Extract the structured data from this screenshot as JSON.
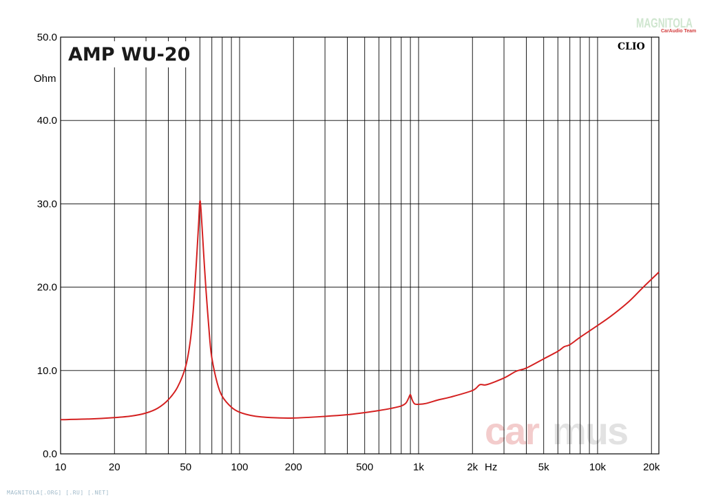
{
  "chart_data": {
    "type": "line",
    "title": "AMP WU-20",
    "ylabel": "Ohm",
    "xlabel": "Hz",
    "xscale": "log",
    "xlim": [
      10,
      22000
    ],
    "ylim": [
      0,
      50
    ],
    "y_ticks": [
      "0.0",
      "10.0",
      "20.0",
      "30.0",
      "40.0",
      "50.0"
    ],
    "x_ticks": [
      {
        "v": 10,
        "label": "10"
      },
      {
        "v": 20,
        "label": "20"
      },
      {
        "v": 50,
        "label": "50"
      },
      {
        "v": 100,
        "label": "100"
      },
      {
        "v": 200,
        "label": "200"
      },
      {
        "v": 500,
        "label": "500"
      },
      {
        "v": 1000,
        "label": "1k"
      },
      {
        "v": 2000,
        "label": "2k"
      },
      {
        "v": 5000,
        "label": "5k"
      },
      {
        "v": 10000,
        "label": "10k"
      },
      {
        "v": 20000,
        "label": "20k"
      }
    ],
    "grid": true,
    "series": [
      {
        "color": "#d42020",
        "points": [
          [
            10,
            4.1
          ],
          [
            15,
            4.2
          ],
          [
            20,
            4.35
          ],
          [
            25,
            4.55
          ],
          [
            30,
            4.9
          ],
          [
            35,
            5.5
          ],
          [
            40,
            6.5
          ],
          [
            45,
            8.0
          ],
          [
            50,
            10.5
          ],
          [
            53,
            13.5
          ],
          [
            55,
            17
          ],
          [
            57,
            22
          ],
          [
            59,
            27.5
          ],
          [
            60,
            30.3
          ],
          [
            61,
            29
          ],
          [
            63,
            24
          ],
          [
            65,
            19.5
          ],
          [
            68,
            14
          ],
          [
            70,
            11.5
          ],
          [
            75,
            8.5
          ],
          [
            80,
            6.9
          ],
          [
            90,
            5.6
          ],
          [
            100,
            5.0
          ],
          [
            120,
            4.55
          ],
          [
            150,
            4.35
          ],
          [
            200,
            4.3
          ],
          [
            300,
            4.5
          ],
          [
            400,
            4.7
          ],
          [
            500,
            4.95
          ],
          [
            600,
            5.2
          ],
          [
            700,
            5.45
          ],
          [
            800,
            5.75
          ],
          [
            850,
            6.1
          ],
          [
            880,
            6.7
          ],
          [
            900,
            7.1
          ],
          [
            920,
            6.5
          ],
          [
            950,
            6.0
          ],
          [
            1000,
            5.95
          ],
          [
            1100,
            6.05
          ],
          [
            1300,
            6.5
          ],
          [
            1500,
            6.8
          ],
          [
            2000,
            7.6
          ],
          [
            2200,
            8.3
          ],
          [
            2400,
            8.3
          ],
          [
            3000,
            9.1
          ],
          [
            3500,
            9.9
          ],
          [
            4000,
            10.3
          ],
          [
            5000,
            11.4
          ],
          [
            6000,
            12.3
          ],
          [
            6500,
            12.85
          ],
          [
            7000,
            13.1
          ],
          [
            8000,
            14.0
          ],
          [
            10000,
            15.4
          ],
          [
            12000,
            16.6
          ],
          [
            15000,
            18.3
          ],
          [
            18000,
            20.0
          ],
          [
            22000,
            21.8
          ]
        ]
      }
    ]
  },
  "watermarks": {
    "logo_top": "MAGNITOLA",
    "logo_sub": "CarAudio Team",
    "clio": "CLIO",
    "carmus": "carmus",
    "footer": "MAGNITOLA[.ORG] [.RU] [.NET]"
  },
  "colors": {
    "curve": "#d42020",
    "grid": "#000000",
    "carmus_red": "#f3cccc",
    "carmus_grey": "#e2e2e2"
  }
}
